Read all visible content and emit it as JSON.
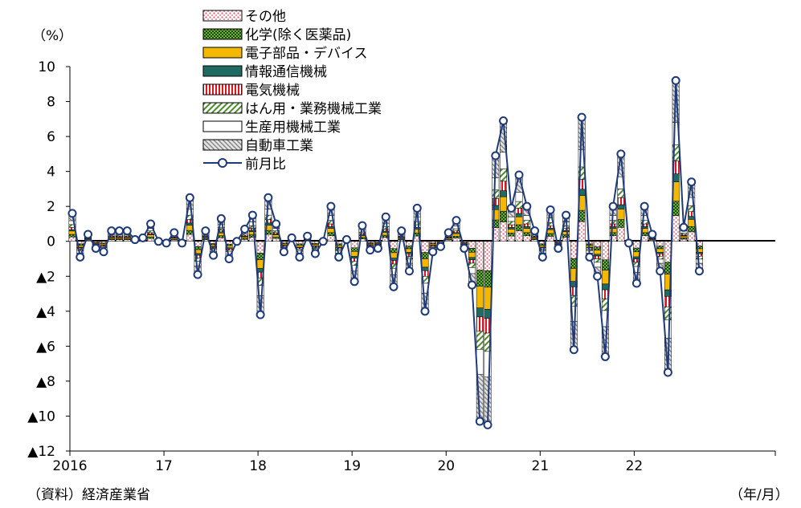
{
  "chart_data": {
    "type": "bar",
    "stacked": true,
    "ylabel": "（%）",
    "xlabel": "（年/月）",
    "source": "（資料）経済産業省",
    "ylim": [
      -12,
      10
    ],
    "yticks": [
      10,
      8,
      6,
      4,
      2,
      0,
      -2,
      -4,
      -6,
      -8,
      -10,
      -12
    ],
    "ytick_labels": [
      "10",
      "8",
      "6",
      "4",
      "2",
      "0",
      "▲2",
      "▲4",
      "▲6",
      "▲8",
      "▲10",
      "▲12"
    ],
    "x_year_labels": [
      "2016",
      "17",
      "18",
      "19",
      "20",
      "21",
      "22"
    ],
    "x_start": "2016-01",
    "x_end": "2022-09",
    "grid": false,
    "legend_position": "top",
    "series": [
      {
        "name": "その他",
        "color": "#f4b6b6",
        "pattern": "dots"
      },
      {
        "name": "化学(除く医薬品)",
        "color": "#3e7a2e",
        "pattern": "checker"
      },
      {
        "name": "電子部品・デバイス",
        "color": "#f5b800",
        "pattern": "solid"
      },
      {
        "name": "情報通信機械",
        "color": "#1f6b64",
        "pattern": "solid"
      },
      {
        "name": "電気機械",
        "color": "#e0141e",
        "pattern": "vstripes"
      },
      {
        "name": "はん用・業務機械工業",
        "color": "#4d8a2a",
        "pattern": "diagonal"
      },
      {
        "name": "生産用機械工業",
        "color": "#ffffff",
        "pattern": "outline"
      },
      {
        "name": "自動車工業",
        "color": "#b4b4b4",
        "pattern": "hatch"
      }
    ],
    "line": {
      "name": "前月比",
      "color": "#1f3a7a",
      "x": [
        "2016-01",
        "2016-02",
        "2016-03",
        "2016-04",
        "2016-05",
        "2016-06",
        "2016-07",
        "2016-08",
        "2016-09",
        "2016-10",
        "2016-11",
        "2016-12",
        "2017-01",
        "2017-02",
        "2017-03",
        "2017-04",
        "2017-05",
        "2017-06",
        "2017-07",
        "2017-08",
        "2017-09",
        "2017-10",
        "2017-11",
        "2017-12",
        "2018-01",
        "2018-02",
        "2018-03",
        "2018-04",
        "2018-05",
        "2018-06",
        "2018-07",
        "2018-08",
        "2018-09",
        "2018-10",
        "2018-11",
        "2018-12",
        "2019-01",
        "2019-02",
        "2019-03",
        "2019-04",
        "2019-05",
        "2019-06",
        "2019-07",
        "2019-08",
        "2019-09",
        "2019-10",
        "2019-11",
        "2019-12",
        "2020-01",
        "2020-02",
        "2020-03",
        "2020-04",
        "2020-05",
        "2020-06",
        "2020-07",
        "2020-08",
        "2020-09",
        "2020-10",
        "2020-11",
        "2020-12",
        "2021-01",
        "2021-02",
        "2021-03",
        "2021-04",
        "2021-05",
        "2021-06",
        "2021-07",
        "2021-08",
        "2021-09",
        "2021-10",
        "2021-11",
        "2021-12",
        "2022-01",
        "2022-02",
        "2022-03",
        "2022-04",
        "2022-05",
        "2022-06",
        "2022-07",
        "2022-08",
        "2022-09"
      ],
      "values": [
        1.6,
        -0.9,
        0.4,
        -0.4,
        -0.6,
        0.6,
        0.6,
        0.6,
        0.1,
        0.2,
        1.0,
        0.0,
        -0.1,
        0.5,
        -0.1,
        2.5,
        -1.9,
        0.6,
        -0.8,
        1.3,
        -1.0,
        0.0,
        0.7,
        1.5,
        -4.2,
        2.5,
        1.0,
        -0.6,
        0.2,
        -0.9,
        0.3,
        -0.7,
        0.0,
        2.0,
        -0.9,
        0.1,
        -2.3,
        0.9,
        -0.5,
        -0.4,
        1.4,
        -2.6,
        0.6,
        -1.7,
        1.9,
        -4.0,
        -0.6,
        -0.3,
        0.5,
        1.2,
        -0.4,
        -2.5,
        -10.3,
        -10.5,
        4.9,
        6.9,
        1.9,
        3.8,
        2.0,
        0.6,
        -0.9,
        1.8,
        -0.4,
        1.5,
        -6.2,
        7.1,
        -0.9,
        -2.0,
        -6.6,
        2.0,
        5.0,
        -0.1,
        -2.4,
        2.0,
        0.4,
        -1.7,
        -7.5,
        9.2,
        0.8,
        3.4,
        -1.7
      ]
    }
  }
}
